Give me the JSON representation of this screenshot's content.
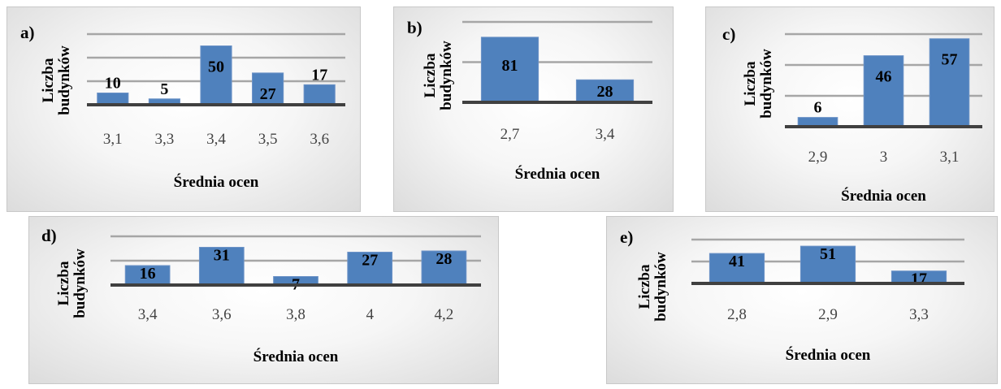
{
  "chart_data": [
    {
      "panel": "a)",
      "type": "bar",
      "categories": [
        "3,1",
        "3,3",
        "3,4",
        "3,5",
        "3,6"
      ],
      "values": [
        10,
        5,
        50,
        27,
        17
      ],
      "xlabel": "Średnia ocen",
      "ylabel_lines": [
        "Liczba",
        "budynków"
      ],
      "ylim": [
        0,
        60
      ],
      "grid": true,
      "color": "#4f81bd"
    },
    {
      "panel": "b)",
      "type": "bar",
      "categories": [
        "2,7",
        "3,4"
      ],
      "values": [
        81,
        28
      ],
      "xlabel": "Średnia ocen",
      "ylabel_lines": [
        "Liczba",
        "budynków"
      ],
      "ylim": [
        0,
        100
      ],
      "grid": true,
      "color": "#4f81bd"
    },
    {
      "panel": "c)",
      "type": "bar",
      "categories": [
        "2,9",
        "3",
        "3,1"
      ],
      "values": [
        6,
        46,
        57
      ],
      "xlabel": "Średnia ocen",
      "ylabel_lines": [
        "Liczba",
        "budynków"
      ],
      "ylim": [
        0,
        60
      ],
      "grid": true,
      "color": "#4f81bd"
    },
    {
      "panel": "d)",
      "type": "bar",
      "categories": [
        "3,4",
        "3,6",
        "3,8",
        "4",
        "4,2"
      ],
      "values": [
        16,
        31,
        7,
        27,
        28
      ],
      "xlabel": "Średnia ocen",
      "ylabel_lines": [
        "Liczba",
        "budynków"
      ],
      "ylim": [
        0,
        40
      ],
      "grid": true,
      "color": "#4f81bd"
    },
    {
      "panel": "e)",
      "type": "bar",
      "categories": [
        "2,8",
        "2,9",
        "3,3"
      ],
      "values": [
        41,
        51,
        17
      ],
      "xlabel": "Średnia ocen",
      "ylabel_lines": [
        "Liczba",
        "budynków"
      ],
      "ylim": [
        0,
        60
      ],
      "grid": true,
      "color": "#4f81bd"
    }
  ]
}
